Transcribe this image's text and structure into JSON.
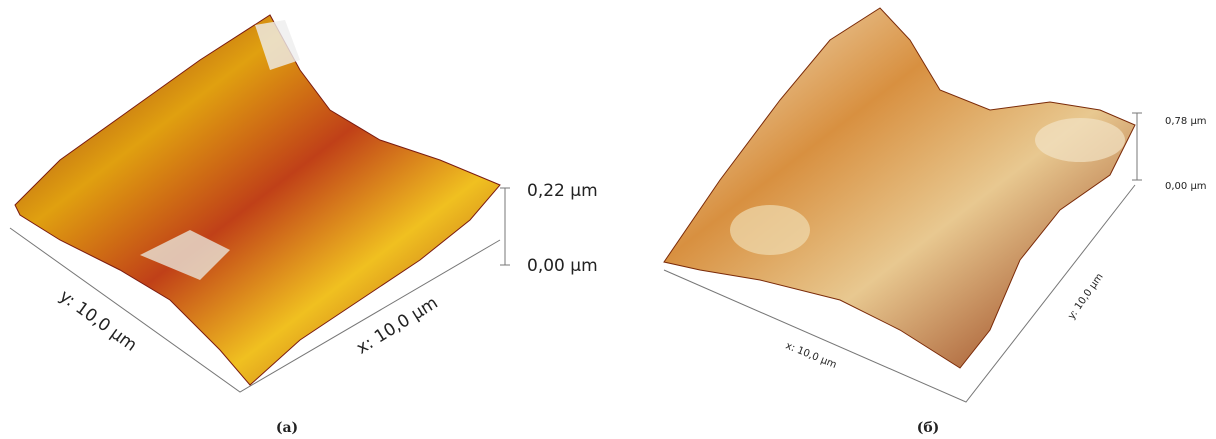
{
  "panels": [
    {
      "scale": {
        "top": "0,22 µm",
        "bottom": "0,00 µm"
      },
      "axes": {
        "y": "y: 10,0 µm",
        "x": "x: 10,0 µm"
      },
      "caption": "(a)"
    },
    {
      "scale": {
        "top": "0,78 µm",
        "bottom": "0,00 µm"
      },
      "axes": {
        "x": "x: 10,0 µm",
        "y": "y: 10,0 µm"
      },
      "caption": "(б)"
    }
  ]
}
